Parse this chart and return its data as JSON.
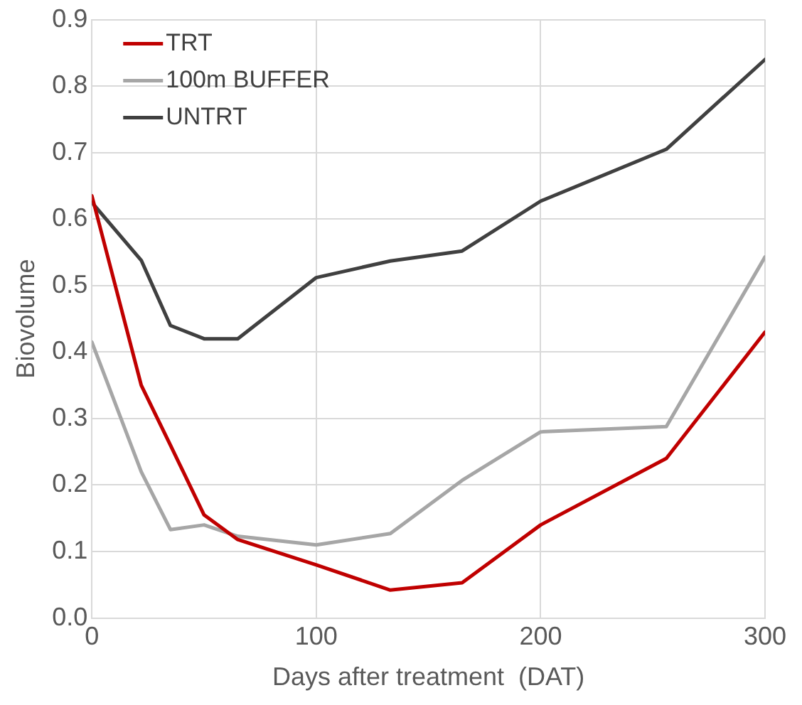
{
  "chart_data": {
    "type": "line",
    "xlabel": "Days after treatment  (DAT)",
    "ylabel": "Biovolume",
    "x": [
      0,
      22,
      35,
      50,
      65,
      100,
      133,
      165,
      200,
      256,
      300
    ],
    "series": [
      {
        "name": "TRT",
        "color": "#c00000",
        "values": [
          0.635,
          0.35,
          0.26,
          0.155,
          0.118,
          0.08,
          0.042,
          0.053,
          0.14,
          0.24,
          0.43
        ]
      },
      {
        "name": "100m BUFFER",
        "color": "#a6a6a6",
        "values": [
          0.415,
          0.22,
          0.133,
          0.14,
          0.123,
          0.11,
          0.127,
          0.207,
          0.28,
          0.288,
          0.543
        ]
      },
      {
        "name": "UNTRT",
        "color": "#404040",
        "values": [
          0.625,
          0.538,
          0.44,
          0.42,
          0.42,
          0.512,
          0.537,
          0.552,
          0.627,
          0.705,
          0.84
        ]
      }
    ],
    "xlim": [
      0,
      300
    ],
    "xticks": [
      0,
      100,
      200,
      300
    ],
    "ylim": [
      0,
      0.9
    ],
    "yticks": [
      {
        "value": 0,
        "label": "0.0"
      },
      {
        "value": 0.1,
        "label": "0.1"
      },
      {
        "value": 0.2,
        "label": "0.2"
      },
      {
        "value": 0.3,
        "label": "0.3"
      },
      {
        "value": 0.4,
        "label": "0.4"
      },
      {
        "value": 0.5,
        "label": "0.5"
      },
      {
        "value": 0.6,
        "label": "0.6"
      },
      {
        "value": 0.7,
        "label": "0.7"
      },
      {
        "value": 0.8,
        "label": "0.8"
      },
      {
        "value": 0.9,
        "label": "0.9"
      }
    ],
    "grid": true,
    "legend": "top left",
    "marker": "none",
    "line_style": "solid"
  }
}
